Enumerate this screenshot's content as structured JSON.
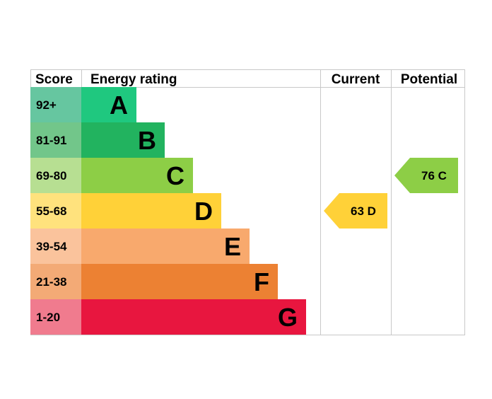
{
  "header": {
    "score": "Score",
    "energy_rating": "Energy rating",
    "current": "Current",
    "potential": "Potential"
  },
  "colors": {
    "grid": "#c8c8c8",
    "A": "#1fc87f",
    "B": "#22b35f",
    "C": "#8dce46",
    "D": "#ffd138",
    "E": "#f8a96d",
    "F": "#ec8133",
    "G": "#e8163f",
    "A_score": "#66c6a0",
    "B_score": "#72c68a",
    "C_score": "#b7df92",
    "D_score": "#ffe27d",
    "E_score": "#fac39c",
    "F_score": "#f3aa76",
    "G_score": "#f07b8e"
  },
  "chart_data": {
    "type": "table",
    "bands": [
      {
        "letter": "A",
        "range": "92+"
      },
      {
        "letter": "B",
        "range": "81-91"
      },
      {
        "letter": "C",
        "range": "69-80"
      },
      {
        "letter": "D",
        "range": "55-68"
      },
      {
        "letter": "E",
        "range": "39-54"
      },
      {
        "letter": "F",
        "range": "21-38"
      },
      {
        "letter": "G",
        "range": "1-20"
      }
    ],
    "current": {
      "value": 63,
      "band": "D",
      "label": "63  D",
      "color": "#ffd138"
    },
    "potential": {
      "value": 76,
      "band": "C",
      "label": "76  C",
      "color": "#8dce46"
    }
  }
}
